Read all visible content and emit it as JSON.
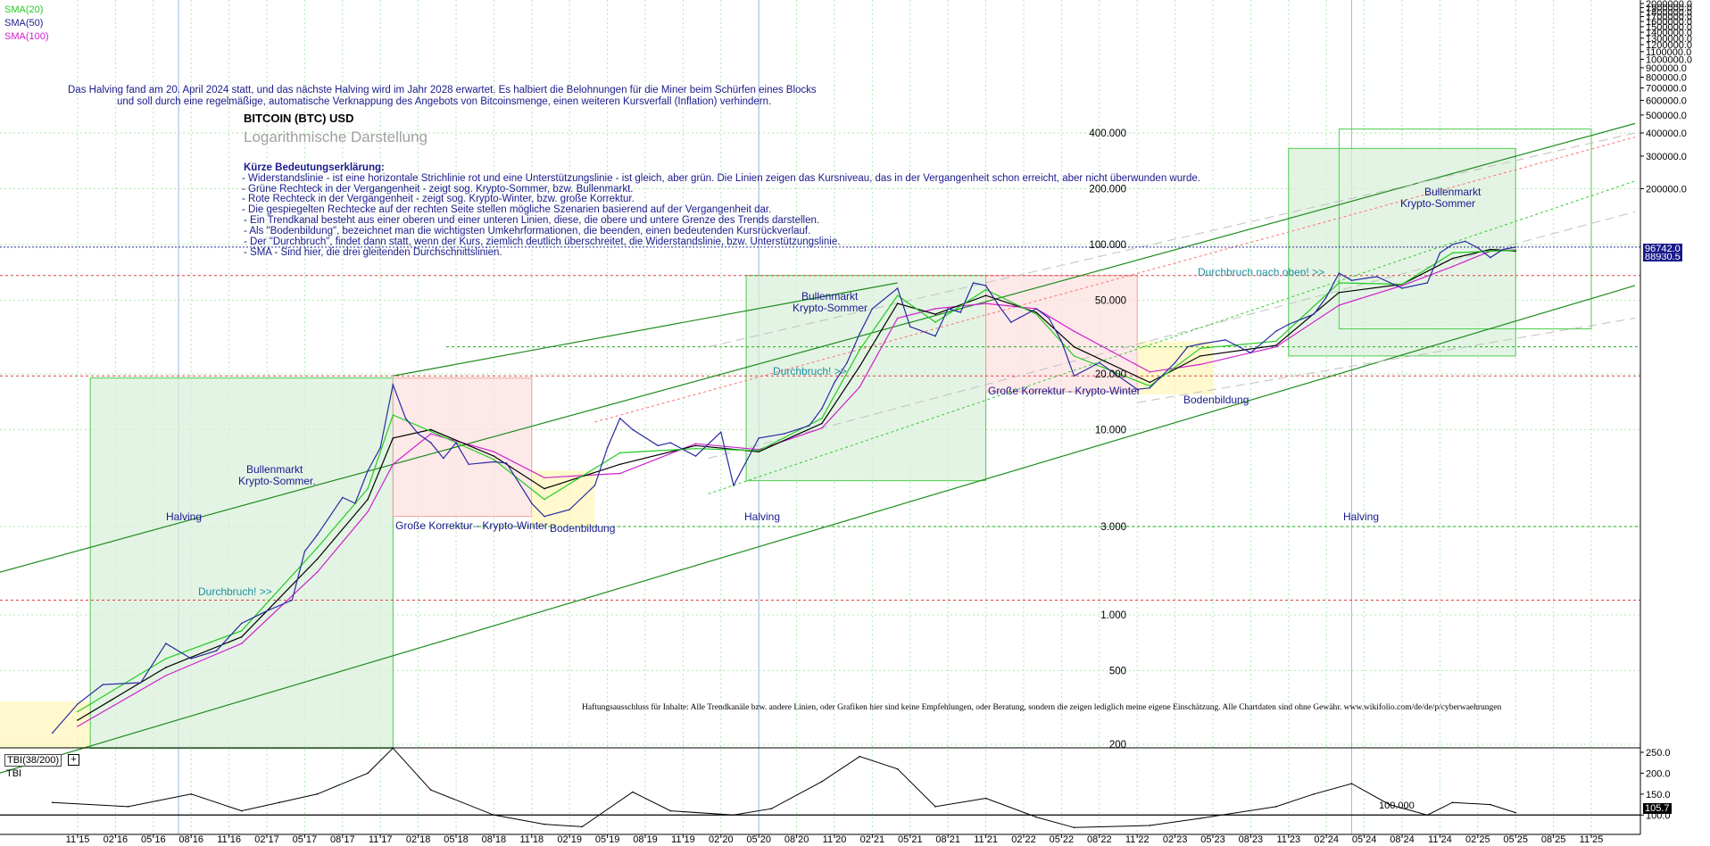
{
  "legend": [
    {
      "label": "SMA(20)",
      "color": "#22cc22"
    },
    {
      "label": "SMA(50)",
      "color": "#1a1a8c"
    },
    {
      "label": "SMA(100)",
      "color": "#d020d0"
    }
  ],
  "header": {
    "note_line1": "Das Halving fand am 20. April 2024 statt, und das nächste Halving wird im Jahr 2028 erwartet. Es halbiert die Belohnungen für die Miner beim Schürfen eines Blocks",
    "note_line2": "und soll durch eine regelmäßige, automatische Verknappung des Angebots von Bitcoinsmenge, einen weiteren Kursverfall (Inflation) verhindern.",
    "title": "BITCOIN (BTC) USD",
    "subtitle": "Logarithmische Darstellung"
  },
  "explanation": [
    "Kürze Bedeutungserklärung:",
    "- Widerstandslinie - ist eine horizontale Strichlinie rot und eine Unterstützungslinie - ist gleich, aber grün. Die Linien zeigen das Kursniveau, das in der Vergangenheit schon erreicht, aber nicht überwunden wurde.",
    "- Grüne Rechteck in der Vergangenheit - zeigt sog. Krypto-Sommer, bzw. Bullenmarkt.",
    "- Rote Rechteck in der Vergangenheit - zeigt sog. Krypto-Winter, bzw. große Korrektur.",
    "- Die gespiegelten Rechtecke auf der rechten Seite stellen mögliche Szenarien basierend auf der Vergangenheit dar.",
    "- Ein Trendkanal besteht aus einer oberen und einer unteren Linien, diese, die obere und untere Grenze des Trends darstellen.",
    "- Als \"Bodenbildung\", bezeichnet man die wichtigsten Umkehrformationen, die beenden, einen bedeutenden Kursrückverlauf.",
    "- Der \"Durchbruch\", findet dann statt, wenn der Kurs, ziemlich deutlich überschreitet, die Widerstandslinie, bzw. Unterstützungslinie.",
    "- SMA - Sind hier, die drei gleitenden Durchschnittslinien."
  ],
  "annotations": {
    "halving_1": "Halving",
    "halving_2": "Halving",
    "halving_3": "Halving",
    "bull_1": "Bullenmarkt",
    "bull_1b": "Krypto-Sommer.",
    "bull_2": "Bullenmarkt",
    "bull_2b": "Krypto-Sommer",
    "bull_3": "Bullenmarkt",
    "bull_3b": "Krypto-Sommer",
    "korrektur_1": "Große Korrektur - Krypto-Winter",
    "korrektur_2": "Große Korrektur - Krypto-Winter",
    "boden_1": "Bodenbildung",
    "boden_2": "Bodenbildung",
    "durchbruch_1": "Durchbruch! >>",
    "durchbruch_2": "Durchbruch! >>",
    "durchbruch_3": "Durchbruch nach oben! >>",
    "disclaimer": "Haftungsausschluss für Inhalte: Alle Trendkanäle bzw. andere Linien, oder Grafiken hier sind keine Empfehlungen, oder Beratung, sondern die zeigen lediglich meine eigene Einschätzung. Alle Chartdaten sind ohne Gewähr. www.wikifolio.com/de/de/p/cyberwaehrungen"
  },
  "colors": {
    "price": "#2a2aa0",
    "sma20": "#22cc22",
    "sma50": "#000000",
    "sma100": "#d020d0",
    "grid": "#aeeaae",
    "bull_box": "#d8f0d8",
    "bear_box": "#fde0e0",
    "bottom_box": "#fff6b8",
    "trend_line": "#1e8c1e",
    "last_price_bg": "#1a1a8c"
  },
  "chart_data": {
    "type": "line",
    "title": "BITCOIN (BTC) USD",
    "yscale": "log",
    "ylim": [
      150,
      2000000
    ],
    "grid": true,
    "x_tick_labels": [
      "11 15",
      "02 16",
      "05 16",
      "08 16",
      "11 16",
      "02 17",
      "05 17",
      "08 17",
      "11 17",
      "02 18",
      "05 18",
      "08 18",
      "11 18",
      "02 19",
      "05 19",
      "08 19",
      "11 19",
      "02 20",
      "05 20",
      "08 20",
      "11 20",
      "02 21",
      "05 21",
      "08 21",
      "11 21",
      "02 22",
      "05 22",
      "08 22",
      "11 22",
      "02 23",
      "05 23",
      "08 23",
      "11 23",
      "02 24",
      "05 24",
      "08 24",
      "11 24",
      "02 25",
      "05 25",
      "08 25",
      "11 25"
    ],
    "right_axis_ticks": [
      "2000000.0",
      "1900000.0",
      "1800000.0",
      "1700000.0",
      "1600000.0",
      "1500000.0",
      "1400000.0",
      "1300000.0",
      "1200000.0",
      "1100000.0",
      "1000000.0",
      "900000.0",
      "800000.0",
      "700000.0",
      "600000.0",
      "500000.0",
      "400000.0",
      "300000.0",
      "200000.0"
    ],
    "right_axis_values": [
      2000000,
      1900000,
      1800000,
      1700000,
      1600000,
      1500000,
      1400000,
      1300000,
      1200000,
      1100000,
      1000000,
      900000,
      800000,
      700000,
      600000,
      500000,
      400000,
      300000,
      200000
    ],
    "inner_axis_ticks": [
      "400.000",
      "200.000",
      "100.000",
      "50.000",
      "20.000",
      "10.000",
      "3.000",
      "1.000",
      "500",
      "200"
    ],
    "inner_axis_values": [
      400000,
      200000,
      100000,
      50000,
      20000,
      10000,
      3000,
      1000,
      500,
      200
    ],
    "last_price_label": "96742.0",
    "last_price_value": 96742,
    "secondary_price_label": "88930.5",
    "secondary_price_value": 88930.5,
    "resistance_levels": [
      68000,
      19500,
      1200
    ],
    "support_levels": [
      28000,
      3000
    ],
    "series": [
      {
        "name": "BTC",
        "x": [
          "2015-09",
          "2015-11",
          "2016-01",
          "2016-04",
          "2016-06",
          "2016-08",
          "2016-10",
          "2016-12",
          "2017-02",
          "2017-04",
          "2017-05",
          "2017-06",
          "2017-08",
          "2017-09",
          "2017-10",
          "2017-11",
          "2017-12",
          "2018-01",
          "2018-02",
          "2018-03",
          "2018-04",
          "2018-05",
          "2018-06",
          "2018-08",
          "2018-09",
          "2018-11",
          "2018-12",
          "2019-02",
          "2019-04",
          "2019-05",
          "2019-06",
          "2019-07",
          "2019-09",
          "2019-10",
          "2019-12",
          "2020-02",
          "2020-03",
          "2020-05",
          "2020-07",
          "2020-09",
          "2020-10",
          "2020-11",
          "2020-12",
          "2021-01",
          "2021-02",
          "2021-04",
          "2021-05",
          "2021-07",
          "2021-08",
          "2021-09",
          "2021-10",
          "2021-11",
          "2021-12",
          "2022-01",
          "2022-03",
          "2022-04",
          "2022-05",
          "2022-06",
          "2022-08",
          "2022-11",
          "2022-12",
          "2023-02",
          "2023-03",
          "2023-04",
          "2023-06",
          "2023-08",
          "2023-10",
          "2023-11",
          "2024-01",
          "2024-02",
          "2024-03",
          "2024-04",
          "2024-06",
          "2024-08",
          "2024-10",
          "2024-11",
          "2024-12",
          "2025-01",
          "2025-02",
          "2025-03",
          "2025-04",
          "2025-05"
        ],
        "y": [
          230,
          330,
          420,
          430,
          700,
          580,
          640,
          900,
          1050,
          1200,
          2200,
          2700,
          4300,
          4000,
          6000,
          8000,
          17500,
          11500,
          9500,
          8500,
          7000,
          8500,
          6500,
          6700,
          6600,
          4000,
          3400,
          3700,
          5000,
          8000,
          11500,
          10000,
          8200,
          8500,
          7200,
          9700,
          5000,
          9000,
          9500,
          10500,
          13000,
          18000,
          23000,
          33000,
          45000,
          58000,
          36000,
          32000,
          45000,
          43000,
          62000,
          60000,
          47000,
          38000,
          45000,
          40000,
          30000,
          19500,
          23000,
          16500,
          16800,
          23000,
          28000,
          29000,
          30500,
          26000,
          34000,
          37000,
          42000,
          52000,
          70000,
          64000,
          67000,
          58000,
          62000,
          90000,
          100000,
          104000,
          96000,
          85000,
          94000,
          96742
        ]
      },
      {
        "name": "SMA(20)",
        "x": [
          "2015-11",
          "2016-06",
          "2016-12",
          "2017-06",
          "2017-10",
          "2017-12",
          "2018-03",
          "2018-08",
          "2018-12",
          "2019-06",
          "2019-12",
          "2020-05",
          "2020-10",
          "2021-01",
          "2021-04",
          "2021-07",
          "2021-11",
          "2022-03",
          "2022-06",
          "2022-12",
          "2023-04",
          "2023-10",
          "2024-03",
          "2024-08",
          "2024-12",
          "2025-03",
          "2025-05"
        ],
        "y": [
          300,
          580,
          820,
          2300,
          4800,
          12000,
          9800,
          6900,
          4200,
          7500,
          7900,
          7700,
          11500,
          27000,
          53000,
          38000,
          57000,
          42000,
          25000,
          17200,
          27500,
          30000,
          62000,
          61000,
          90000,
          92000,
          93000
        ]
      },
      {
        "name": "SMA(50)",
        "x": [
          "2015-11",
          "2016-06",
          "2016-12",
          "2017-06",
          "2017-10",
          "2017-12",
          "2018-03",
          "2018-08",
          "2018-12",
          "2019-06",
          "2019-12",
          "2020-05",
          "2020-10",
          "2021-01",
          "2021-04",
          "2021-07",
          "2021-11",
          "2022-03",
          "2022-06",
          "2022-12",
          "2023-04",
          "2023-10",
          "2024-03",
          "2024-08",
          "2024-12",
          "2025-03",
          "2025-05"
        ],
        "y": [
          270,
          520,
          760,
          2000,
          4200,
          9000,
          10000,
          7200,
          4800,
          6500,
          8200,
          7600,
          10800,
          22000,
          48000,
          42000,
          53000,
          43000,
          28000,
          18000,
          25000,
          28500,
          55000,
          61000,
          84000,
          94000,
          92000
        ]
      },
      {
        "name": "SMA(100)",
        "x": [
          "2015-11",
          "2016-06",
          "2016-12",
          "2017-06",
          "2017-10",
          "2017-12",
          "2018-03",
          "2018-08",
          "2018-12",
          "2019-06",
          "2019-12",
          "2020-05",
          "2020-10",
          "2021-01",
          "2021-04",
          "2021-07",
          "2021-11",
          "2022-03",
          "2022-06",
          "2022-12",
          "2023-04",
          "2023-10",
          "2024-03",
          "2024-08",
          "2024-12",
          "2025-03",
          "2025-05"
        ],
        "y": [
          250,
          470,
          700,
          1700,
          3600,
          6500,
          9500,
          7600,
          5500,
          5800,
          8400,
          7800,
          10200,
          17000,
          40000,
          45000,
          48000,
          45000,
          34000,
          20500,
          22500,
          28000,
          47000,
          60000,
          76000,
          92000,
          93500
        ]
      }
    ],
    "indicator": {
      "name": "TBI(38/200)",
      "label": "TBI",
      "ticks": [
        "250.0",
        "200.0",
        "150.0",
        "100.0"
      ],
      "tick_values": [
        250,
        200,
        150,
        100
      ],
      "baseline_label": "100.000",
      "last_value_label": "105.7",
      "last_value": 105.7,
      "x": [
        "2015-09",
        "2016-03",
        "2016-08",
        "2016-12",
        "2017-03",
        "2017-06",
        "2017-10",
        "2017-12",
        "2018-03",
        "2018-08",
        "2018-12",
        "2019-03",
        "2019-07",
        "2019-10",
        "2020-03",
        "2020-06",
        "2020-10",
        "2021-01",
        "2021-04",
        "2021-07",
        "2021-11",
        "2022-03",
        "2022-06",
        "2022-12",
        "2023-04",
        "2023-10",
        "2024-01",
        "2024-04",
        "2024-07",
        "2024-10",
        "2024-12",
        "2025-03",
        "2025-05"
      ],
      "y": [
        130,
        120,
        150,
        110,
        130,
        150,
        200,
        260,
        160,
        100,
        78,
        72,
        155,
        110,
        100,
        115,
        180,
        240,
        210,
        120,
        140,
        95,
        70,
        75,
        92,
        120,
        150,
        175,
        125,
        100,
        130,
        125,
        105.7
      ]
    }
  }
}
